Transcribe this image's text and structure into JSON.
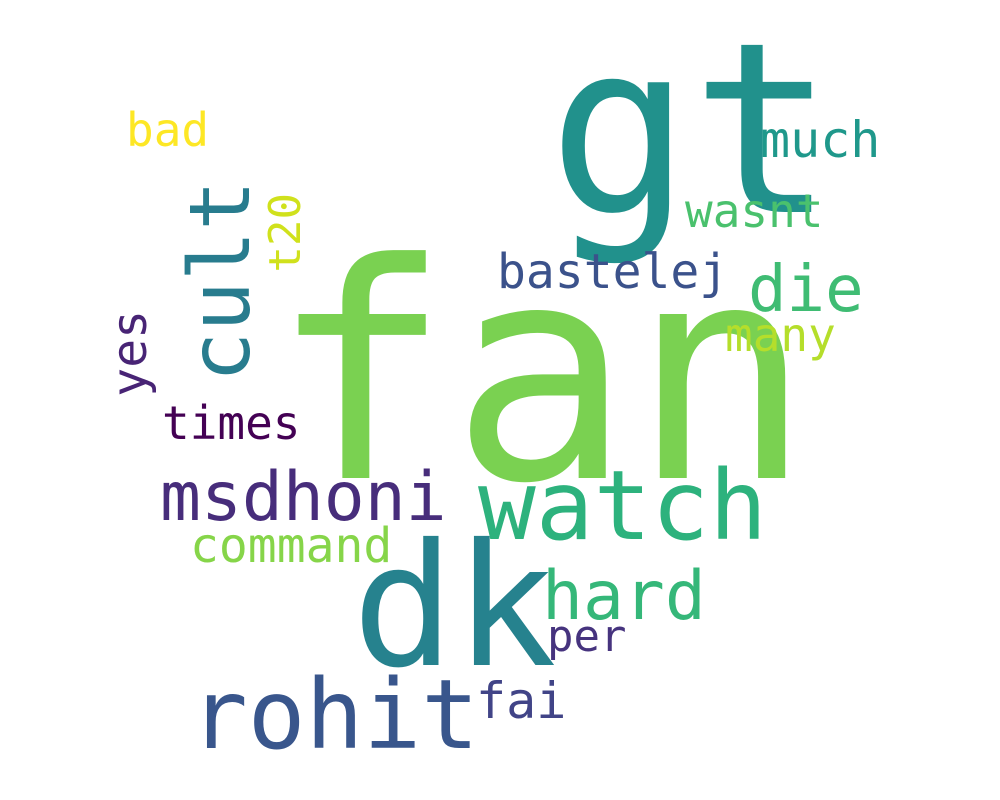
{
  "wordcloud": {
    "words": {
      "fan": {
        "text": "fan",
        "color": "#7ad151"
      },
      "gt": {
        "text": "gt",
        "color": "#21918c"
      },
      "dk": {
        "text": "dk",
        "color": "#26828e"
      },
      "rohit": {
        "text": "rohit",
        "color": "#39568c"
      },
      "watch": {
        "text": "watch",
        "color": "#2db27d"
      },
      "msdhoni": {
        "text": "msdhoni",
        "color": "#472d7b"
      },
      "cult": {
        "text": "cult",
        "color": "#287c8e"
      },
      "hard": {
        "text": "hard",
        "color": "#35b779"
      },
      "die": {
        "text": "die",
        "color": "#3fbc73"
      },
      "command": {
        "text": "command",
        "color": "#86d549"
      },
      "bastelej": {
        "text": "bastelej",
        "color": "#3b528b"
      },
      "much": {
        "text": "much",
        "color": "#1f988b"
      },
      "wasnt": {
        "text": "wasnt",
        "color": "#4ac16d"
      },
      "many": {
        "text": "many",
        "color": "#b5de2b"
      },
      "times": {
        "text": "times",
        "color": "#440154"
      },
      "bad": {
        "text": "bad",
        "color": "#fde725"
      },
      "t20": {
        "text": "t20",
        "color": "#d0e11c"
      },
      "yes": {
        "text": "yes",
        "color": "#482475"
      },
      "per": {
        "text": "per",
        "color": "#46337e"
      },
      "fai": {
        "text": "fai",
        "color": "#414487"
      }
    }
  }
}
